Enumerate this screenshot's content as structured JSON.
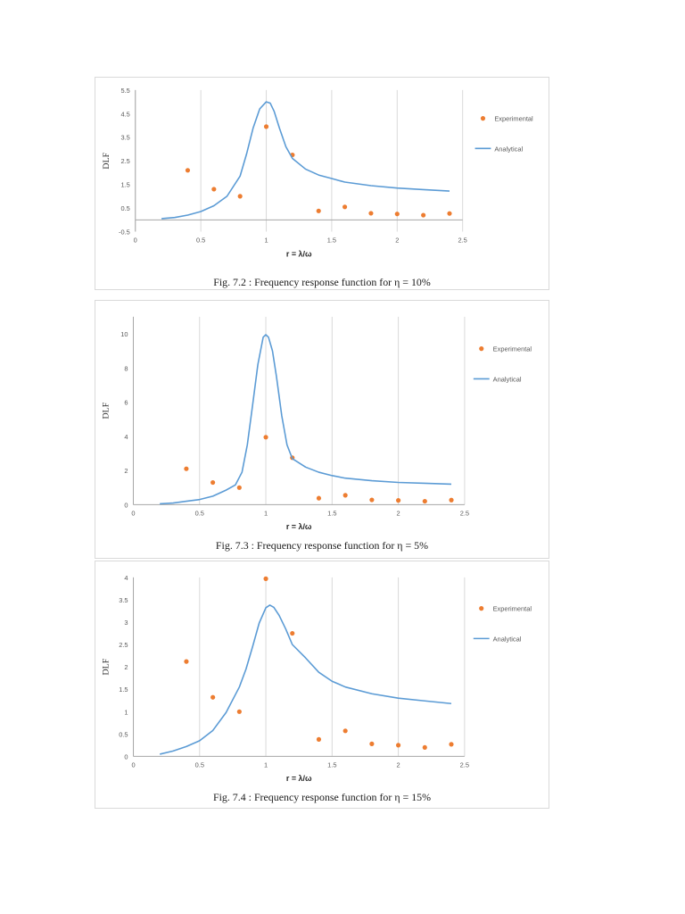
{
  "colors": {
    "experimental": "#ed7d31",
    "analytical": "#5b9bd5",
    "grid": "#d9d9d9",
    "axis": "#a6a6a6"
  },
  "chart_data": [
    {
      "type": "scatter",
      "caption": "Fig. 7.2 : Frequency response function for η = 10%",
      "xlabel": "r = λ/ω",
      "ylabel": "DLF",
      "xlim": [
        0,
        2.5
      ],
      "ylim": [
        -0.5,
        5.5
      ],
      "xticks": [
        "0",
        "0.5",
        "1",
        "1.5",
        "2",
        "2.5"
      ],
      "yticks": [
        "-0.5",
        "0.5",
        "1.5",
        "2.5",
        "3.5",
        "4.5",
        "5.5"
      ],
      "grid": "vertical",
      "legend_position": "right",
      "series": [
        {
          "name": "Experimental",
          "kind": "points",
          "x": [
            0.4,
            0.6,
            0.8,
            1.0,
            1.2,
            1.4,
            1.6,
            1.8,
            2.0,
            2.2,
            2.4
          ],
          "y": [
            2.1,
            1.3,
            1.0,
            3.95,
            2.75,
            0.38,
            0.55,
            0.28,
            0.25,
            0.2,
            0.27
          ]
        },
        {
          "name": "Analytical",
          "kind": "line",
          "x": [
            0.2,
            0.3,
            0.4,
            0.5,
            0.6,
            0.7,
            0.8,
            0.85,
            0.9,
            0.95,
            1.0,
            1.03,
            1.06,
            1.1,
            1.15,
            1.2,
            1.3,
            1.4,
            1.5,
            1.6,
            1.8,
            2.0,
            2.2,
            2.4
          ],
          "y": [
            0.05,
            0.1,
            0.2,
            0.35,
            0.6,
            1.0,
            1.85,
            2.8,
            3.9,
            4.7,
            5.0,
            4.95,
            4.6,
            3.9,
            3.1,
            2.6,
            2.15,
            1.9,
            1.75,
            1.6,
            1.45,
            1.35,
            1.28,
            1.22
          ]
        }
      ]
    },
    {
      "type": "scatter",
      "caption": "Fig. 7.3 : Frequency response function for η = 5%",
      "xlabel": "r = λ/ω",
      "ylabel": "DLF",
      "xlim": [
        0,
        2.5
      ],
      "ylim": [
        0,
        11
      ],
      "xticks": [
        "0",
        "0.5",
        "1",
        "1.5",
        "2",
        "2.5"
      ],
      "yticks": [
        "0",
        "2",
        "4",
        "6",
        "8",
        "10"
      ],
      "grid": "vertical",
      "legend_position": "right",
      "series": [
        {
          "name": "Experimental",
          "kind": "points",
          "x": [
            0.4,
            0.6,
            0.8,
            1.0,
            1.2,
            1.4,
            1.6,
            1.8,
            2.0,
            2.2,
            2.4
          ],
          "y": [
            2.1,
            1.3,
            1.0,
            3.95,
            2.75,
            0.38,
            0.55,
            0.28,
            0.25,
            0.2,
            0.27
          ]
        },
        {
          "name": "Analytical",
          "kind": "line",
          "x": [
            0.2,
            0.3,
            0.4,
            0.5,
            0.6,
            0.7,
            0.77,
            0.82,
            0.86,
            0.9,
            0.94,
            0.98,
            1.0,
            1.02,
            1.05,
            1.08,
            1.12,
            1.16,
            1.2,
            1.3,
            1.4,
            1.5,
            1.6,
            1.8,
            2.0,
            2.2,
            2.4
          ],
          "y": [
            0.05,
            0.1,
            0.2,
            0.3,
            0.5,
            0.85,
            1.15,
            1.9,
            3.5,
            5.8,
            8.2,
            9.8,
            9.95,
            9.8,
            9.0,
            7.5,
            5.2,
            3.5,
            2.7,
            2.2,
            1.9,
            1.7,
            1.55,
            1.4,
            1.3,
            1.25,
            1.2
          ]
        }
      ]
    },
    {
      "type": "scatter",
      "caption": "Fig. 7.4 : Frequency response function for η = 15%",
      "xlabel": "r = λ/ω",
      "ylabel": "DLF",
      "xlim": [
        0,
        2.5
      ],
      "ylim": [
        0,
        4
      ],
      "xticks": [
        "0",
        "0.5",
        "1",
        "1.5",
        "2",
        "2.5"
      ],
      "yticks": [
        "0",
        "0.5",
        "1",
        "1.5",
        "2",
        "2.5",
        "3",
        "3.5",
        "4"
      ],
      "grid": "vertical",
      "legend_position": "right",
      "series": [
        {
          "name": "Experimental",
          "kind": "points",
          "x": [
            0.4,
            0.6,
            0.8,
            1.0,
            1.2,
            1.4,
            1.6,
            1.8,
            2.0,
            2.2,
            2.4
          ],
          "y": [
            2.12,
            1.32,
            1.0,
            3.97,
            2.75,
            0.38,
            0.57,
            0.28,
            0.25,
            0.2,
            0.27
          ]
        },
        {
          "name": "Analytical",
          "kind": "line",
          "x": [
            0.2,
            0.3,
            0.4,
            0.5,
            0.6,
            0.7,
            0.8,
            0.85,
            0.9,
            0.95,
            1.0,
            1.03,
            1.06,
            1.1,
            1.15,
            1.2,
            1.3,
            1.4,
            1.5,
            1.6,
            1.8,
            2.0,
            2.2,
            2.4
          ],
          "y": [
            0.05,
            0.12,
            0.22,
            0.35,
            0.58,
            0.98,
            1.55,
            1.95,
            2.45,
            2.98,
            3.32,
            3.38,
            3.33,
            3.15,
            2.85,
            2.5,
            2.2,
            1.88,
            1.68,
            1.55,
            1.4,
            1.3,
            1.24,
            1.18
          ]
        }
      ]
    }
  ]
}
